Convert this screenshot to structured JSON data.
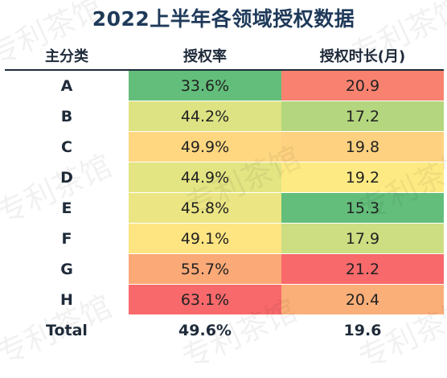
{
  "title": "2022上半年各领域授权数据",
  "headers": [
    "主分类",
    "授权率",
    "授权时长(月)"
  ],
  "rows": [
    {
      "category": "A",
      "rate": "33.6%",
      "duration": "20.9",
      "rate_color": "#63be7b",
      "duration_color": "#f8826f"
    },
    {
      "category": "B",
      "rate": "44.2%",
      "duration": "17.2",
      "rate_color": "#dde382",
      "duration_color": "#b4d67e"
    },
    {
      "category": "C",
      "rate": "49.9%",
      "duration": "19.8",
      "rate_color": "#fed780",
      "duration_color": "#fdd17f"
    },
    {
      "category": "D",
      "rate": "44.9%",
      "duration": "19.2",
      "rate_color": "#e3e482",
      "duration_color": "#feea83"
    },
    {
      "category": "E",
      "rate": "45.8%",
      "duration": "15.3",
      "rate_color": "#ebe683",
      "duration_color": "#63be7b"
    },
    {
      "category": "F",
      "rate": "49.1%",
      "duration": "17.9",
      "rate_color": "#fee582",
      "duration_color": "#cddd81"
    },
    {
      "category": "G",
      "rate": "55.7%",
      "duration": "21.2",
      "rate_color": "#fba977",
      "duration_color": "#f8696b"
    },
    {
      "category": "H",
      "rate": "63.1%",
      "duration": "20.4",
      "rate_color": "#f8696b",
      "duration_color": "#fbaf78"
    }
  ],
  "total": {
    "label": "Total",
    "rate": "49.6%",
    "duration": "19.6"
  },
  "watermark": "专利茶馆"
}
